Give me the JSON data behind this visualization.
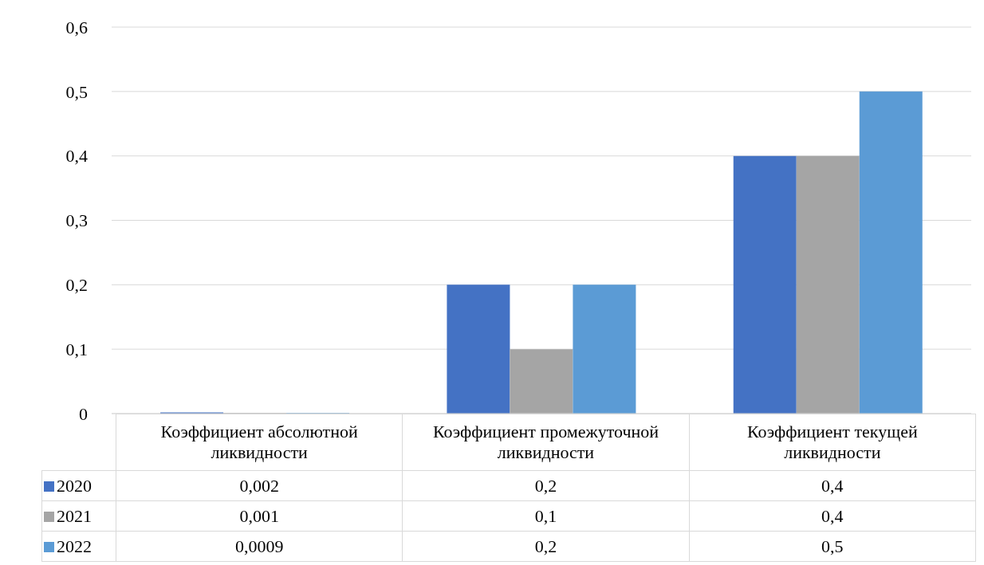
{
  "chart_data": {
    "type": "bar",
    "categories": [
      "Коэффициент абсолютной ликвидности",
      "Коэффициент промежуточной ликвидности",
      "Коэффициент текущей ликвидности"
    ],
    "series": [
      {
        "name": "2020",
        "color": "#4472c4",
        "values": [
          0.002,
          0.2,
          0.4
        ],
        "value_labels": [
          "0,002",
          "0,2",
          "0,4"
        ]
      },
      {
        "name": "2021",
        "color": "#a5a5a5",
        "values": [
          0.001,
          0.1,
          0.4
        ],
        "value_labels": [
          "0,001",
          "0,1",
          "0,4"
        ]
      },
      {
        "name": "2022",
        "color": "#5b9bd5",
        "values": [
          0.0009,
          0.2,
          0.5
        ],
        "value_labels": [
          "0,0009",
          "0,2",
          "0,5"
        ]
      }
    ],
    "ylim": [
      0,
      0.6
    ],
    "yticks": [
      {
        "value": 0,
        "label": "0"
      },
      {
        "value": 0.1,
        "label": "0,1"
      },
      {
        "value": 0.2,
        "label": "0,2"
      },
      {
        "value": 0.3,
        "label": "0,3"
      },
      {
        "value": 0.4,
        "label": "0,4"
      },
      {
        "value": 0.5,
        "label": "0,5"
      },
      {
        "value": 0.6,
        "label": "0,6"
      }
    ],
    "grid": "y",
    "legend": "bottom"
  }
}
